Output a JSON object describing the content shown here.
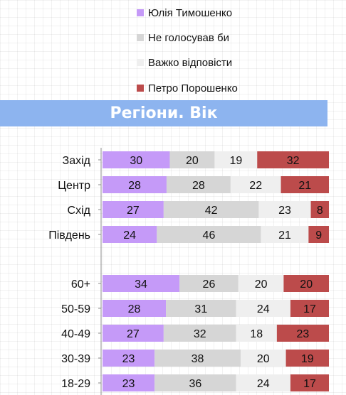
{
  "banner": {
    "title": "Регіони. Вік"
  },
  "legend": [
    {
      "label": "Юлія Тимошенко",
      "color": "#c59af8"
    },
    {
      "label": "Не голосував би",
      "color": "#d6d6d6"
    },
    {
      "label": "Важко відповісти",
      "color": "#efefef"
    },
    {
      "label": "Петро Порошенко",
      "color": "#bc4b4b"
    }
  ],
  "chart_data": {
    "type": "bar",
    "orientation": "horizontal",
    "stacked": true,
    "categories": [
      "Захід",
      "Центр",
      "Схід",
      "Південь",
      "60+",
      "50-59",
      "40-49",
      "30-39",
      "18-29"
    ],
    "series": [
      {
        "name": "Юлія Тимошенко",
        "color": "#c59af8",
        "values": [
          30,
          28,
          27,
          24,
          34,
          28,
          27,
          23,
          23
        ]
      },
      {
        "name": "Не голосував би",
        "color": "#d6d6d6",
        "values": [
          20,
          28,
          42,
          46,
          26,
          31,
          32,
          38,
          36
        ]
      },
      {
        "name": "Важко відповісти",
        "color": "#efefef",
        "values": [
          19,
          22,
          23,
          21,
          20,
          24,
          18,
          20,
          24
        ]
      },
      {
        "name": "Петро Порошенко",
        "color": "#bc4b4b",
        "values": [
          32,
          21,
          8,
          9,
          20,
          17,
          23,
          19,
          17
        ]
      }
    ],
    "grid": false,
    "legend_position": "top"
  }
}
